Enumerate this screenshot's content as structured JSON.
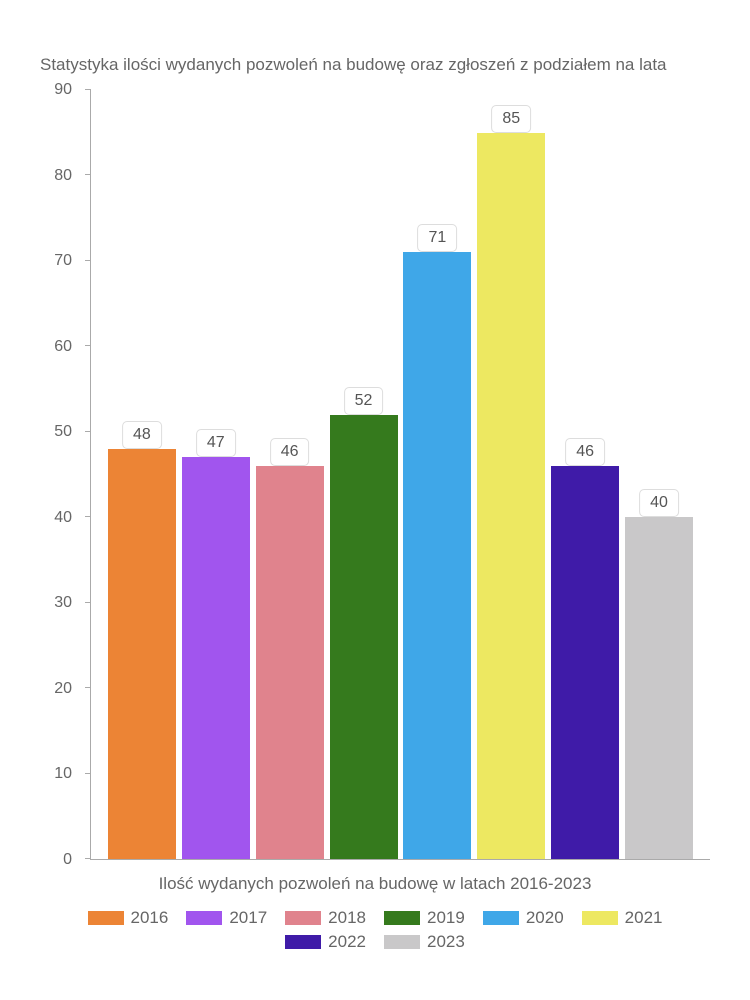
{
  "chart": {
    "type": "bar",
    "title": "Statystyka ilości wydanych pozwoleń na budowę oraz zgłoszeń z podziałem na lata",
    "x_label": "Ilość wydanych pozwoleń na budowę w latach 2016-2023",
    "ylim": [
      0,
      90
    ],
    "ytick_step": 10,
    "yticks": [
      0,
      10,
      20,
      30,
      40,
      50,
      60,
      70,
      80,
      90
    ],
    "categories": [
      "2016",
      "2017",
      "2018",
      "2019",
      "2020",
      "2021",
      "2022",
      "2023"
    ],
    "values": [
      48,
      47,
      46,
      52,
      71,
      85,
      46,
      40
    ],
    "bar_colors": [
      "#ec8435",
      "#a155ee",
      "#e0838d",
      "#357a1d",
      "#3fa7e8",
      "#ede861",
      "#3f1ba8",
      "#c9c8c9"
    ],
    "background_color": "#ffffff",
    "axis_color": "#aaaaaa",
    "text_color": "#666666",
    "title_fontsize": 17,
    "label_fontsize": 17,
    "tick_fontsize": 16,
    "bar_width": 0.92,
    "value_label_bg": "#ffffff",
    "value_label_border": "#dddddd"
  }
}
